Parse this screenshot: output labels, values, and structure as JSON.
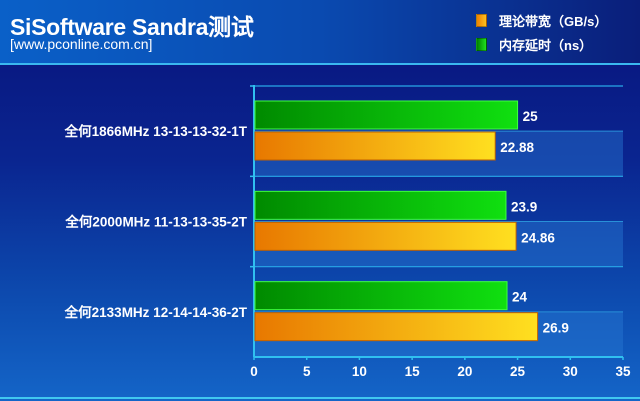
{
  "header": {
    "title": "SiSoftware Sandra测试",
    "subtitle": "[www.pconline.com.cn]"
  },
  "colors": {
    "bandwidth": "#f0a010",
    "latency": "#10c010"
  },
  "chart_data": {
    "type": "bar",
    "orientation": "horizontal",
    "title": "SiSoftware Sandra测试",
    "categories": [
      "全何1866MHz 13-13-13-32-1T",
      "全何2000MHz 11-13-13-35-2T",
      "全何2133MHz 12-14-14-36-2T"
    ],
    "series": [
      {
        "name": "内存延时（ns）",
        "values": [
          25,
          23.9,
          24
        ],
        "labels": [
          "25",
          "23.9",
          "24"
        ]
      },
      {
        "name": "理论带宽（GB/s）",
        "values": [
          22.88,
          24.86,
          26.9
        ],
        "labels": [
          "22.88",
          "24.86",
          "26.9"
        ]
      }
    ],
    "legend": [
      {
        "name": "理论带宽（GB/s）"
      },
      {
        "name": "内存延时（ns）"
      }
    ],
    "xlim": [
      0,
      35
    ],
    "xticks": [
      "0",
      "5",
      "10",
      "15",
      "20",
      "25",
      "30",
      "35"
    ],
    "legend_position": "top-right"
  }
}
